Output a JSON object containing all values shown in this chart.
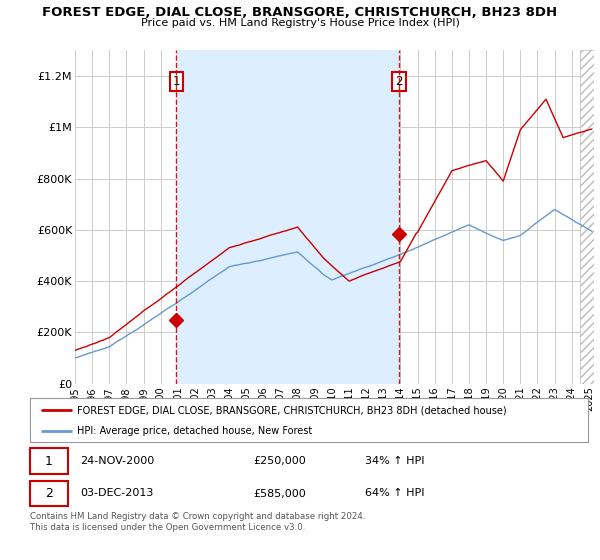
{
  "title": "FOREST EDGE, DIAL CLOSE, BRANSGORE, CHRISTCHURCH, BH23 8DH",
  "subtitle": "Price paid vs. HM Land Registry's House Price Index (HPI)",
  "ylabel_ticks": [
    "£0",
    "£200K",
    "£400K",
    "£600K",
    "£800K",
    "£1M",
    "£1.2M"
  ],
  "ylim": [
    0,
    1300000
  ],
  "xlim_start": 1995.0,
  "xlim_end": 2025.3,
  "sale1_x": 2000.92,
  "sale1_y": 250000,
  "sale2_x": 2013.92,
  "sale2_y": 585000,
  "red_line_color": "#cc0000",
  "blue_line_color": "#6699cc",
  "blue_shade_color": "#ddeeff",
  "vline_color": "#cc0000",
  "grid_color": "#cccccc",
  "legend_red_label": "FOREST EDGE, DIAL CLOSE, BRANSGORE, CHRISTCHURCH, BH23 8DH (detached house)",
  "legend_blue_label": "HPI: Average price, detached house, New Forest",
  "footer": "Contains HM Land Registry data © Crown copyright and database right 2024.\nThis data is licensed under the Open Government Licence v3.0.",
  "background_color": "#ffffff",
  "plot_bg_color": "#ffffff"
}
